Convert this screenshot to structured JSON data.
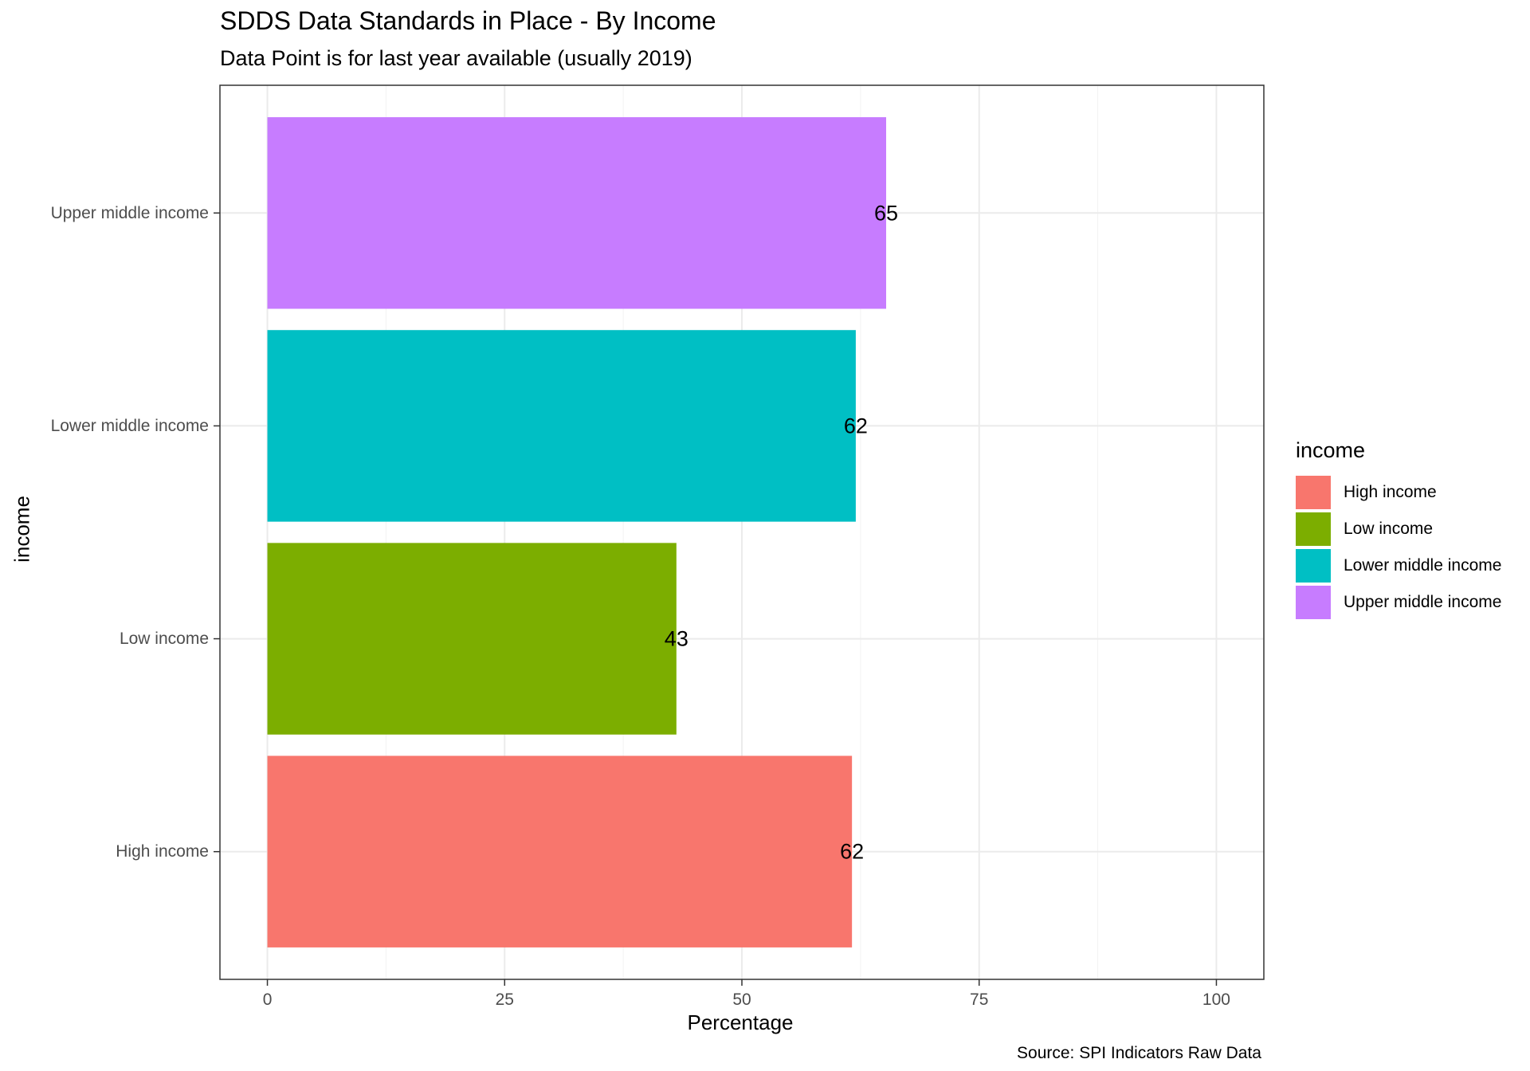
{
  "chart_data": {
    "type": "bar",
    "orientation": "horizontal",
    "title": "SDDS Data Standards in Place - By Income",
    "subtitle": "Data Point is for last year available (usually 2019)",
    "xlabel": "Percentage",
    "ylabel": "income",
    "caption": "Source: SPI Indicators Raw Data",
    "categories": [
      "High income",
      "Low income",
      "Lower middle income",
      "Upper middle income"
    ],
    "values": [
      61.6,
      43.1,
      62.0,
      65.2
    ],
    "data_labels": [
      "62",
      "43",
      "62",
      "65"
    ],
    "colors": [
      "#F8766D",
      "#7CAE00",
      "#00BFC4",
      "#C77CFF"
    ],
    "xlim": [
      -5,
      105
    ],
    "x_ticks": [
      0,
      25,
      50,
      75,
      100
    ],
    "x_tick_labels": [
      "0",
      "25",
      "50",
      "75",
      "100"
    ],
    "grid": true,
    "legend": {
      "title": "income",
      "position": "right",
      "entries": [
        "High income",
        "Low income",
        "Lower middle income",
        "Upper middle income"
      ]
    }
  }
}
